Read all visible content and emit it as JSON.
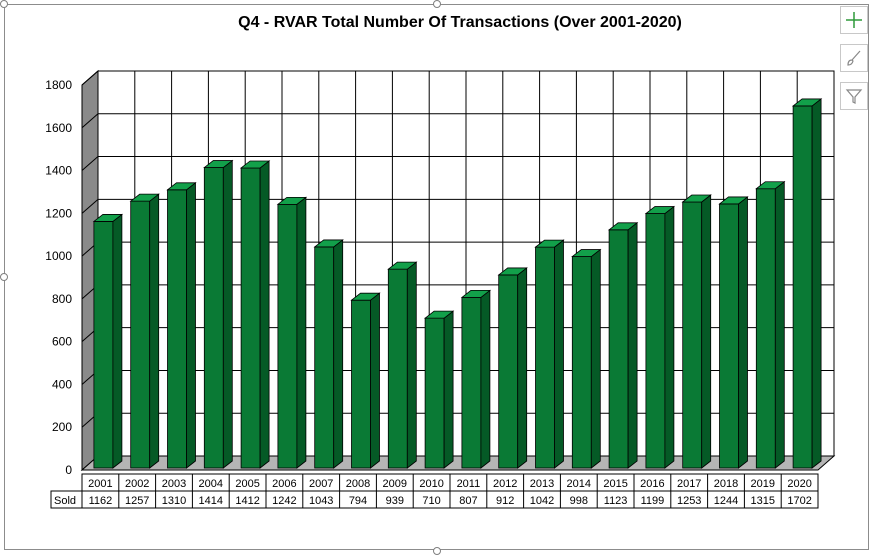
{
  "chart_data": {
    "type": "bar",
    "title": "Q4 - RVAR Total Number Of Transactions (Over 2001-2020)",
    "categories": [
      "2001",
      "2002",
      "2003",
      "2004",
      "2005",
      "2006",
      "2007",
      "2008",
      "2009",
      "2010",
      "2011",
      "2012",
      "2013",
      "2014",
      "2015",
      "2016",
      "2017",
      "2018",
      "2019",
      "2020"
    ],
    "series": [
      {
        "name": "Sold",
        "values": [
          1162,
          1257,
          1310,
          1414,
          1412,
          1242,
          1043,
          794,
          939,
          710,
          807,
          912,
          1042,
          998,
          1123,
          1199,
          1253,
          1244,
          1315,
          1702
        ]
      }
    ],
    "ylim": [
      0,
      1800
    ],
    "yticks": [
      "0",
      "200",
      "400",
      "600",
      "800",
      "1000",
      "1200",
      "1400",
      "1600",
      "1800"
    ],
    "grid": true,
    "data_table": true,
    "bar_color": "#0a7a35"
  },
  "side_buttons": {
    "add_icon": "plus-icon",
    "style_icon": "brush-icon",
    "filter_icon": "filter-icon"
  }
}
